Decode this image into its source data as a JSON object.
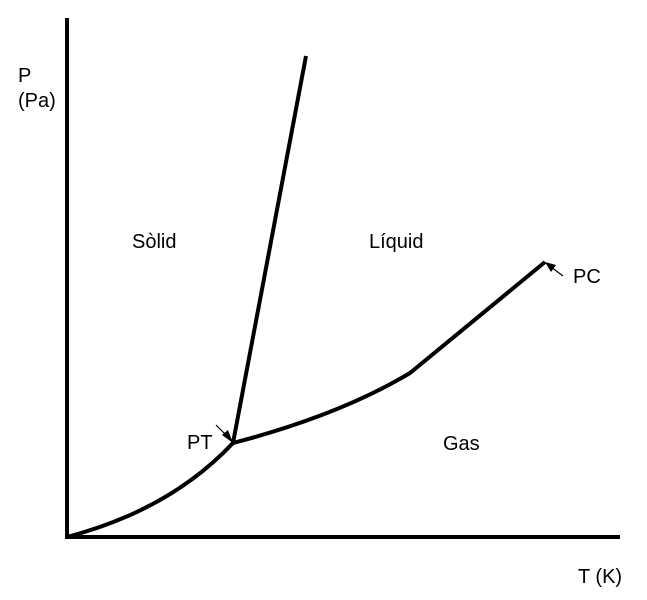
{
  "axes": {
    "y_label_line1": "P",
    "y_label_line2": "(Pa)",
    "x_label": "T (K)"
  },
  "regions": {
    "solid": "Sòlid",
    "liquid": "Líquid",
    "gas": "Gas"
  },
  "points": {
    "triple": "PT",
    "critical": "PC"
  },
  "colors": {
    "line": "#000000",
    "background": "#ffffff"
  }
}
